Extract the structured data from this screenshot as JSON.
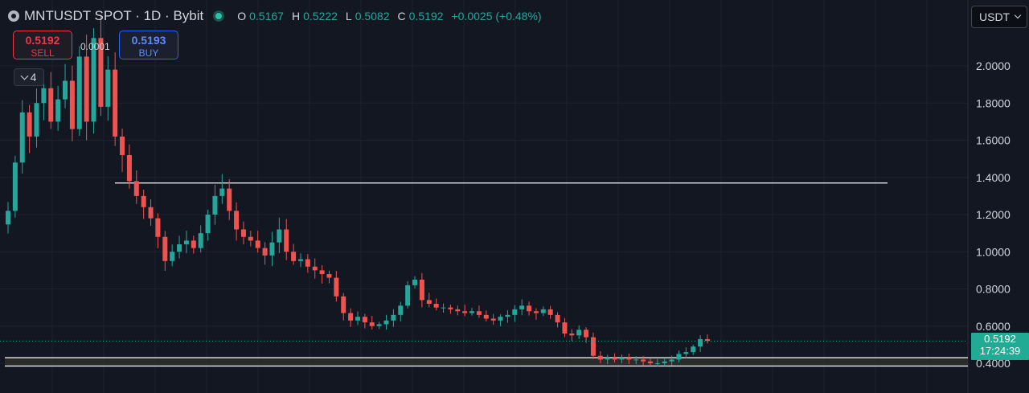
{
  "header": {
    "title": "MNTUSDT SPOT · 1D · Bybit",
    "ohlc": [
      {
        "key": "O",
        "value": "0.5167"
      },
      {
        "key": "H",
        "value": "0.5222"
      },
      {
        "key": "L",
        "value": "0.5082"
      },
      {
        "key": "C",
        "value": "0.5192"
      }
    ],
    "change": "+0.0025 (+0.48%)"
  },
  "trade": {
    "sell_price": "0.5192",
    "sell_label": "SELL",
    "buy_price": "0.5193",
    "buy_label": "BUY",
    "spread": "0.0001"
  },
  "indicators_toggle": {
    "count": "4"
  },
  "currency": {
    "selected": "USDT"
  },
  "last_price": {
    "price": "0.5192",
    "countdown": "17:24:39"
  },
  "colors": {
    "background": "#131722",
    "up": "#26a69a",
    "down": "#ef5350",
    "grid": "#1e2230",
    "tag": "#22ab94"
  },
  "chart_data": {
    "type": "candlestick",
    "interval": "1D",
    "y_ticks": [
      "2.0000",
      "1.8000",
      "1.6000",
      "1.4000",
      "1.2000",
      "1.0000",
      "0.8000",
      "0.6000",
      "0.4000"
    ],
    "ylim": [
      0.38,
      2.2
    ],
    "grid": true,
    "current_price": 0.5192,
    "horizontal_lines": [
      1.37,
      0.43,
      0.385
    ],
    "zone": [
      0.385,
      0.43
    ],
    "closes": [
      1.22,
      1.48,
      1.75,
      1.62,
      1.8,
      1.88,
      1.7,
      1.82,
      1.92,
      1.66,
      2.05,
      1.7,
      2.15,
      1.78,
      1.98,
      1.62,
      1.52,
      1.38,
      1.3,
      1.24,
      1.18,
      1.08,
      0.95,
      1.0,
      1.04,
      1.06,
      1.02,
      1.1,
      1.2,
      1.3,
      1.34,
      1.22,
      1.12,
      1.08,
      1.06,
      1.02,
      0.98,
      1.05,
      1.12,
      1.0,
      0.95,
      0.96,
      0.92,
      0.9,
      0.88,
      0.86,
      0.76,
      0.67,
      0.63,
      0.65,
      0.62,
      0.6,
      0.61,
      0.63,
      0.66,
      0.71,
      0.82,
      0.85,
      0.74,
      0.72,
      0.7,
      0.7,
      0.69,
      0.68,
      0.67,
      0.68,
      0.66,
      0.64,
      0.63,
      0.65,
      0.66,
      0.69,
      0.71,
      0.68,
      0.67,
      0.69,
      0.66,
      0.62,
      0.56,
      0.55,
      0.58,
      0.54,
      0.44,
      0.42,
      0.43,
      0.42,
      0.43,
      0.42,
      0.42,
      0.41,
      0.4,
      0.4,
      0.41,
      0.42,
      0.45,
      0.46,
      0.49,
      0.53,
      0.52
    ]
  }
}
